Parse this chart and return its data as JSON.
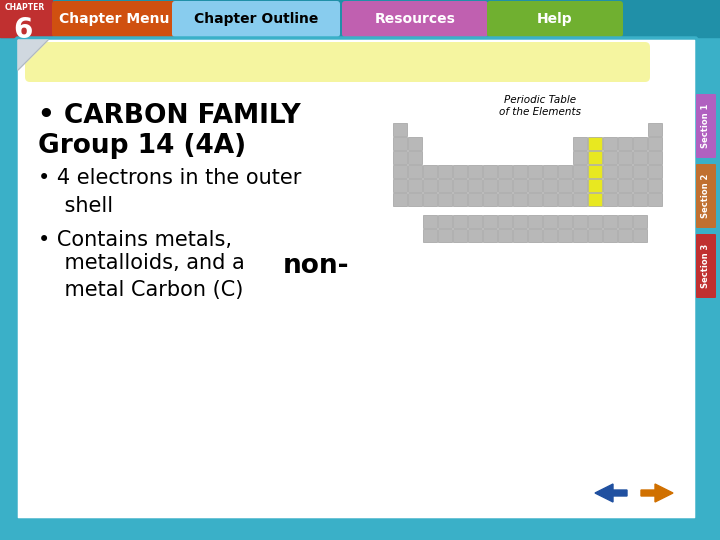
{
  "bg_outer": "#3ab0c8",
  "bg_slide": "#ffffff",
  "bg_yellow_banner": "#f5f5a0",
  "top_bar_color": "#2090a8",
  "chapter_box_bg": "#c03030",
  "chapter_num": "6",
  "chapter_label": "CHAPTER",
  "nav_labels": [
    "Chapter Menu",
    "Chapter Outline",
    "Resources",
    "Help"
  ],
  "nav_colors": [
    "#d05010",
    "#88ccee",
    "#c060b0",
    "#70b030"
  ],
  "nav_text_colors": [
    "#ffffff",
    "#000000",
    "#ffffff",
    "#ffffff"
  ],
  "section_colors": [
    "#b060c0",
    "#c07030",
    "#c03030"
  ],
  "section_labels": [
    "Section 1",
    "Section 2",
    "Section 3"
  ],
  "periodic_title": "Periodic Table\nof the Elements",
  "cell_color_normal": "#b8b8b8",
  "cell_color_highlight": "#e8e820",
  "cell_border": "#909090",
  "arrow_color_left": "#2050a0",
  "arrow_color_right": "#d07000",
  "slide_border_color": "#3ab0c8",
  "text_color": "#000000",
  "bullet1_line1": "• CARBON FAMILY",
  "bullet1_line2": "Group 14 (4A)",
  "bullet2": "• 4 electrons in the outer\n    shell",
  "bullet3_pre": "• Contains metals,\n    metalloids, and a ",
  "bullet3_bold": "non-",
  "bullet3_post": "\n    metal Carbon (C)"
}
